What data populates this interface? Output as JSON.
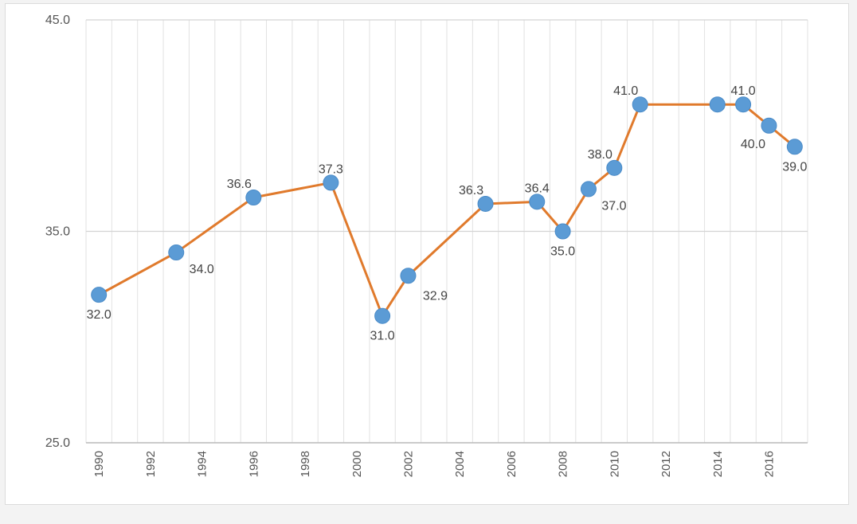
{
  "chart_data": {
    "type": "line",
    "title": "",
    "xlabel": "",
    "ylabel": "",
    "xlim": [
      1989.5,
      2017.5
    ],
    "ylim": [
      25,
      45
    ],
    "y_ticks": [
      "45.0",
      "35.0",
      "25.0"
    ],
    "y_tick_values": [
      45,
      35,
      25
    ],
    "x_ticks": [
      "1990",
      "1992",
      "1994",
      "1996",
      "1998",
      "2000",
      "2002",
      "2004",
      "2006",
      "2008",
      "2010",
      "2012",
      "2014",
      "2016"
    ],
    "x_tick_values": [
      1990,
      1992,
      1994,
      1996,
      1998,
      2000,
      2002,
      2004,
      2006,
      2008,
      2010,
      2012,
      2014,
      2016
    ],
    "grid": "vertical every year, horizontal at y ticks",
    "series": [
      {
        "x": [
          1990,
          1993,
          1996,
          1999,
          2001,
          2002,
          2005,
          2007,
          2008,
          2009,
          2010,
          2011,
          2014,
          2015,
          2016,
          2017
        ],
        "values": [
          32.0,
          34.0,
          36.6,
          37.3,
          31.0,
          32.9,
          36.3,
          36.4,
          35.0,
          37.0,
          38.0,
          41.0,
          41.0,
          41.0,
          40.0,
          39.0
        ],
        "labels": [
          "32.0",
          "34.0",
          "36.6",
          "37.3",
          "31.0",
          "32.9",
          "36.3",
          "36.4",
          "35.0",
          "37.0",
          "38.0",
          "41.0",
          "",
          "41.0",
          "40.0",
          "39.0"
        ],
        "label_positions": [
          "below",
          "below-right",
          "above-left",
          "above",
          "below",
          "right",
          "above-left",
          "above",
          "below",
          "below-right",
          "above-left",
          "above-left",
          "",
          "above",
          "below-left",
          "below"
        ],
        "line_color": "#e07a2c",
        "marker_color": "#5b9bd5"
      }
    ]
  }
}
